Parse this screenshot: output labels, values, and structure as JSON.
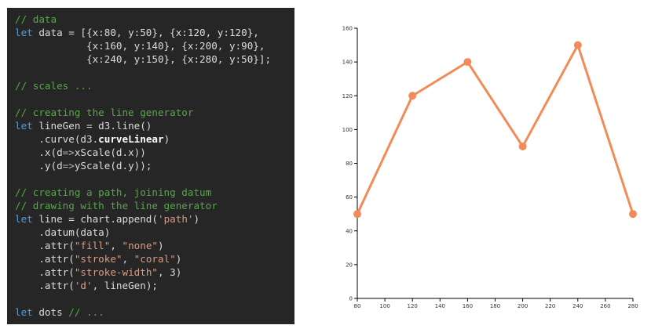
{
  "code": {
    "lines": [
      [
        {
          "t": "// data",
          "c": "comment"
        }
      ],
      [
        {
          "t": "let",
          "c": "keyword"
        },
        {
          "t": " data = [{x:80, y:50}, {x:120, y:120},",
          "c": ""
        }
      ],
      [
        {
          "t": "            {x:160, y:140}, {x:200, y:90},",
          "c": ""
        }
      ],
      [
        {
          "t": "            {x:240, y:150}, {x:280, y:50}];",
          "c": ""
        }
      ],
      [],
      [
        {
          "t": "// scales ...",
          "c": "comment"
        }
      ],
      [],
      [
        {
          "t": "// creating the line generator",
          "c": "comment"
        }
      ],
      [
        {
          "t": "let",
          "c": "keyword"
        },
        {
          "t": " lineGen = d3.line()",
          "c": ""
        }
      ],
      [
        {
          "t": "    .curve(d3.",
          "c": ""
        },
        {
          "t": "curveLinear",
          "c": "bold"
        },
        {
          "t": ")",
          "c": ""
        }
      ],
      [
        {
          "t": "    .x(d",
          "c": ""
        },
        {
          "t": "=>",
          "c": "arrow"
        },
        {
          "t": "xScale(d.x))",
          "c": ""
        }
      ],
      [
        {
          "t": "    .y(d",
          "c": ""
        },
        {
          "t": "=>",
          "c": "arrow"
        },
        {
          "t": "yScale(d.y));",
          "c": ""
        }
      ],
      [],
      [
        {
          "t": "// creating a path, joining datum",
          "c": "comment"
        }
      ],
      [
        {
          "t": "// drawing with the line generator",
          "c": "comment"
        }
      ],
      [
        {
          "t": "let",
          "c": "keyword"
        },
        {
          "t": " line = chart.append(",
          "c": ""
        },
        {
          "t": "'path'",
          "c": "string"
        },
        {
          "t": ")",
          "c": ""
        }
      ],
      [
        {
          "t": "    .datum(data)",
          "c": ""
        }
      ],
      [
        {
          "t": "    .attr(",
          "c": ""
        },
        {
          "t": "\"fill\"",
          "c": "string"
        },
        {
          "t": ", ",
          "c": ""
        },
        {
          "t": "\"none\"",
          "c": "string"
        },
        {
          "t": ")",
          "c": ""
        }
      ],
      [
        {
          "t": "    .attr(",
          "c": ""
        },
        {
          "t": "\"stroke\"",
          "c": "string"
        },
        {
          "t": ", ",
          "c": ""
        },
        {
          "t": "\"coral\"",
          "c": "string"
        },
        {
          "t": ")",
          "c": ""
        }
      ],
      [
        {
          "t": "    .attr(",
          "c": ""
        },
        {
          "t": "\"stroke-width\"",
          "c": "string"
        },
        {
          "t": ", 3)",
          "c": ""
        }
      ],
      [
        {
          "t": "    .attr(",
          "c": ""
        },
        {
          "t": "'d'",
          "c": "string"
        },
        {
          "t": ", lineGen);",
          "c": ""
        }
      ],
      [],
      [
        {
          "t": "let",
          "c": "keyword"
        },
        {
          "t": " dots ",
          "c": ""
        },
        {
          "t": "// ...",
          "c": "comment"
        }
      ]
    ]
  },
  "chart_data": {
    "type": "line",
    "x": [
      80,
      120,
      160,
      200,
      240,
      280
    ],
    "y": [
      50,
      120,
      140,
      90,
      150,
      50
    ],
    "xlim": [
      80,
      280
    ],
    "ylim": [
      0,
      160
    ],
    "xticks": [
      80,
      100,
      120,
      140,
      160,
      180,
      200,
      220,
      240,
      260,
      280
    ],
    "yticks": [
      0,
      20,
      40,
      60,
      80,
      100,
      120,
      140,
      160
    ],
    "line_color": "#f28b57",
    "grid": false
  },
  "colors": {
    "code_bg": "#262626",
    "comment": "#57a64a",
    "keyword": "#569cd6",
    "string": "#d69d85"
  }
}
